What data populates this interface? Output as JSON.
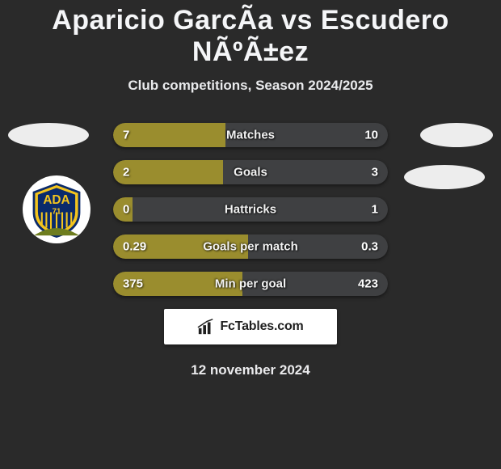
{
  "title": "Aparicio GarcÃ­a vs Escudero NÃºÃ±ez",
  "subtitle": "Club competitions, Season 2024/2025",
  "date": "12 november 2024",
  "brand": "FcTables.com",
  "colors": {
    "left": "#9a8d2e",
    "right": "#3f4042",
    "background": "#2a2a2a"
  },
  "bars": [
    {
      "label": "Matches",
      "left": "7",
      "right": "10",
      "left_pct": 41,
      "right_pct": 59
    },
    {
      "label": "Goals",
      "left": "2",
      "right": "3",
      "left_pct": 40,
      "right_pct": 60
    },
    {
      "label": "Hattricks",
      "left": "0",
      "right": "1",
      "left_pct": 7,
      "right_pct": 93
    },
    {
      "label": "Goals per match",
      "left": "0.29",
      "right": "0.3",
      "left_pct": 49,
      "right_pct": 51
    },
    {
      "label": "Min per goal",
      "left": "375",
      "right": "423",
      "left_pct": 47,
      "right_pct": 53
    }
  ],
  "badge": {
    "top_text": "ADA",
    "sub_text": "71",
    "blue": "#0a2a6b",
    "yellow": "#f3c41e",
    "olive": "#9a8d2e"
  }
}
